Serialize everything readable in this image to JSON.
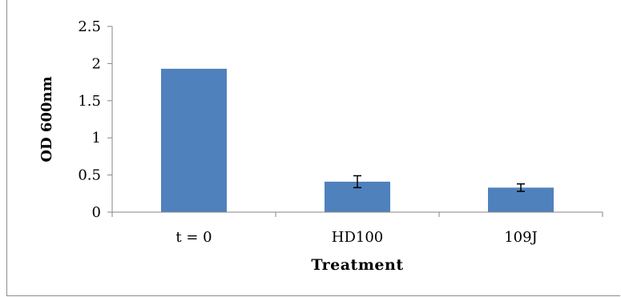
{
  "chart_data": {
    "type": "bar",
    "categories": [
      "t = 0",
      "HD100",
      "109J"
    ],
    "values": [
      1.93,
      0.41,
      0.33
    ],
    "errors": [
      0,
      0.08,
      0.05
    ],
    "title": "",
    "xlabel": "Treatment",
    "ylabel": "OD 600nm",
    "ylim": [
      0,
      2.5
    ],
    "yticks": [
      "0",
      "0.5",
      "1",
      "1.5",
      "2",
      "2.5"
    ],
    "ytick_values": [
      0,
      0.5,
      1,
      1.5,
      2,
      2.5
    ],
    "grid": false,
    "legend": "none",
    "bar_color": "#4f81bd",
    "axis_color": "#868686"
  }
}
